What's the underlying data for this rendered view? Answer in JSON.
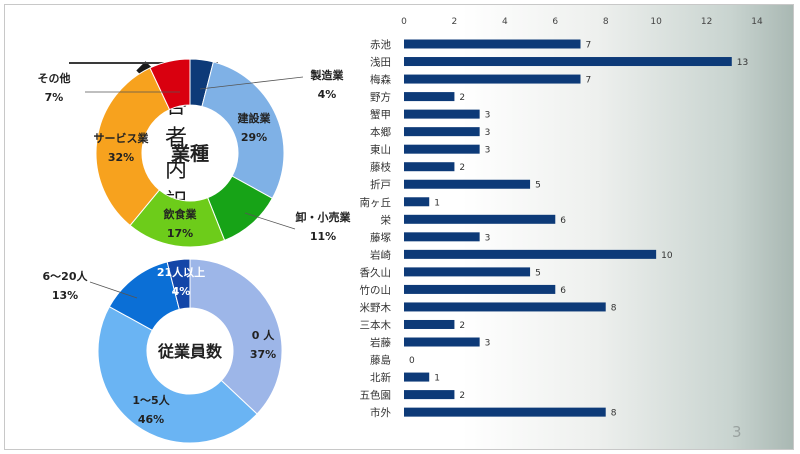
{
  "slide": {
    "title": "回答者内訳",
    "page_number": "3"
  },
  "chart_data": [
    {
      "type": "pie",
      "variant": "donut",
      "title": "",
      "center_label": "業種",
      "slices": [
        {
          "label": "製造業",
          "value": 4,
          "value_label": "4%",
          "color": "#0d3a78"
        },
        {
          "label": "建設業",
          "value": 29,
          "value_label": "29%",
          "color": "#7fb1e6"
        },
        {
          "label": "卸・小売業",
          "value": 11,
          "value_label": "11%",
          "color": "#17a317"
        },
        {
          "label": "飲食業",
          "value": 17,
          "value_label": "17%",
          "color": "#6dcc1a"
        },
        {
          "label": "サービス業",
          "value": 32,
          "value_label": "32%",
          "color": "#f7a21e"
        },
        {
          "label": "その他",
          "value": 7,
          "value_label": "7%",
          "color": "#d9000f"
        }
      ]
    },
    {
      "type": "pie",
      "variant": "donut",
      "title": "",
      "center_label": "従業員数",
      "slices": [
        {
          "label": "0 人",
          "value": 37,
          "value_label": "37%",
          "color": "#9db6e8"
        },
        {
          "label": "1～5人",
          "value": 46,
          "value_label": "46%",
          "color": "#6ab4f3"
        },
        {
          "label": "6～20人",
          "value": 13,
          "value_label": "13%",
          "color": "#0b6fd6"
        },
        {
          "label": "21人以上",
          "value": 4,
          "value_label": "4%",
          "color": "#1346a8"
        }
      ]
    },
    {
      "type": "bar",
      "orientation": "horizontal",
      "title": "",
      "xlabel": "",
      "ylabel": "",
      "xlim": [
        0,
        14
      ],
      "x_ticks": [
        0,
        2,
        4,
        6,
        8,
        10,
        12,
        14
      ],
      "x_tick_labels": [
        "0",
        "2",
        "4",
        "6",
        "8",
        "10",
        "12",
        "14"
      ],
      "x_axis_position": "top",
      "bar_color": "#0d3a78",
      "grid": false,
      "categories": [
        "赤池",
        "浅田",
        "梅森",
        "野方",
        "蟹甲",
        "本郷",
        "東山",
        "藤枝",
        "折戸",
        "南ヶ丘",
        "栄",
        "藤塚",
        "岩崎",
        "香久山",
        "竹の山",
        "米野木",
        "三本木",
        "岩藤",
        "藤島",
        "北新",
        "五色園",
        "市外"
      ],
      "values": [
        7,
        13,
        7,
        2,
        3,
        3,
        3,
        2,
        5,
        1,
        6,
        3,
        10,
        5,
        6,
        8,
        2,
        3,
        0,
        1,
        2,
        8
      ],
      "value_labels": [
        "7",
        "13",
        "7",
        "2",
        "3",
        "3",
        "3",
        "2",
        "5",
        "1",
        "6",
        "3",
        "10",
        "5",
        "6",
        "8",
        "2",
        "3",
        "0",
        "1",
        "2",
        "8"
      ]
    }
  ]
}
